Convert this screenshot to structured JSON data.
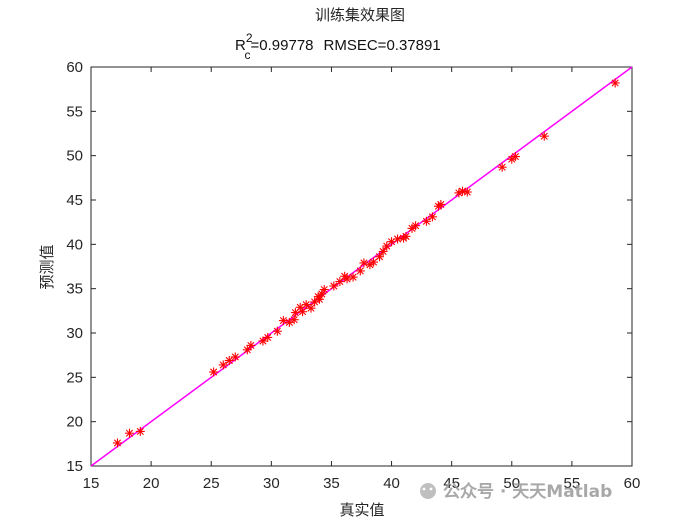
{
  "chart_data": {
    "type": "scatter",
    "title": "训练集效果图",
    "subtitle": {
      "r_label": "R",
      "r_sup": "2",
      "r_sub": "c",
      "r_value": "=0.99778",
      "rmsec": "RMSEC=0.37891"
    },
    "xlabel": "真实值",
    "ylabel": "预测值",
    "xlim": [
      15,
      60
    ],
    "ylim": [
      15,
      60
    ],
    "xticks": [
      "15",
      "20",
      "25",
      "30",
      "35",
      "40",
      "45",
      "50",
      "55",
      "60"
    ],
    "yticks": [
      "15",
      "20",
      "25",
      "30",
      "35",
      "40",
      "45",
      "50",
      "55",
      "60"
    ],
    "grid": false,
    "marker_color": "#ff0000",
    "line_color": "#ff00ff",
    "reference_line": {
      "x": [
        15,
        60
      ],
      "y": [
        15,
        60
      ]
    },
    "points": [
      [
        17.2,
        17.6
      ],
      [
        18.2,
        18.7
      ],
      [
        19.1,
        18.9
      ],
      [
        25.2,
        25.6
      ],
      [
        26.0,
        26.4
      ],
      [
        26.5,
        26.9
      ],
      [
        27.0,
        27.3
      ],
      [
        28.0,
        28.1
      ],
      [
        28.3,
        28.6
      ],
      [
        29.3,
        29.1
      ],
      [
        29.7,
        29.5
      ],
      [
        30.5,
        30.2
      ],
      [
        31.0,
        31.4
      ],
      [
        31.5,
        31.2
      ],
      [
        31.9,
        31.5
      ],
      [
        32.0,
        32.3
      ],
      [
        32.6,
        32.4
      ],
      [
        32.4,
        32.9
      ],
      [
        32.9,
        33.2
      ],
      [
        33.3,
        32.8
      ],
      [
        33.6,
        33.5
      ],
      [
        33.9,
        34.1
      ],
      [
        34.2,
        34.4
      ],
      [
        34.0,
        33.8
      ],
      [
        34.4,
        34.9
      ],
      [
        35.2,
        35.3
      ],
      [
        35.7,
        35.8
      ],
      [
        36.1,
        36.4
      ],
      [
        36.3,
        36.1
      ],
      [
        36.8,
        36.3
      ],
      [
        37.4,
        37.0
      ],
      [
        37.7,
        37.9
      ],
      [
        38.2,
        37.7
      ],
      [
        38.5,
        38.0
      ],
      [
        39.0,
        38.6
      ],
      [
        39.3,
        39.2
      ],
      [
        39.6,
        39.8
      ],
      [
        40.0,
        40.3
      ],
      [
        40.5,
        40.6
      ],
      [
        41.0,
        40.7
      ],
      [
        41.2,
        40.9
      ],
      [
        41.7,
        41.8
      ],
      [
        42.0,
        42.1
      ],
      [
        42.9,
        42.6
      ],
      [
        43.4,
        43.1
      ],
      [
        43.9,
        44.3
      ],
      [
        44.1,
        44.5
      ],
      [
        45.6,
        45.8
      ],
      [
        45.9,
        46.0
      ],
      [
        46.3,
        45.9
      ],
      [
        49.2,
        48.7
      ],
      [
        50.0,
        49.6
      ],
      [
        50.3,
        49.9
      ],
      [
        52.7,
        52.2
      ],
      [
        58.6,
        58.2
      ]
    ]
  },
  "watermark": "公众号 · 天天Matlab"
}
